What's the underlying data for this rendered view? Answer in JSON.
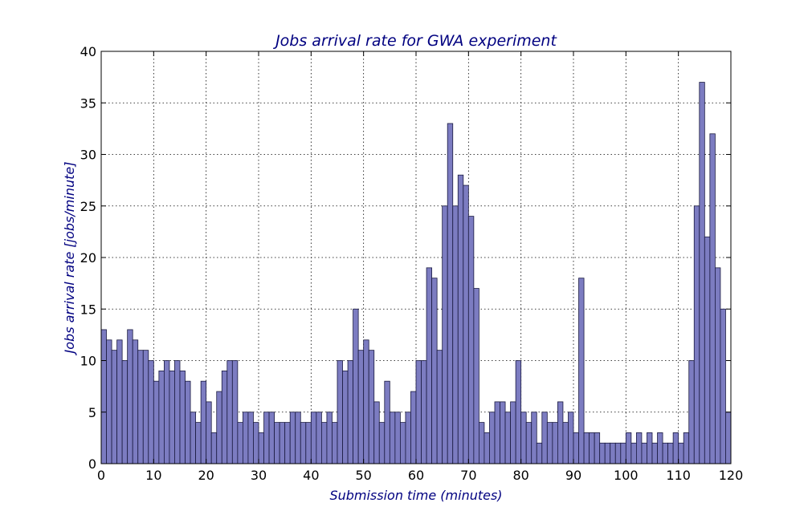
{
  "chart_data": {
    "type": "bar",
    "title": "Jobs arrival rate for GWA experiment",
    "xlabel": "Submission time (minutes)",
    "ylabel": "Jobs arrival rate [jobs/minute]",
    "xlim": [
      0,
      120
    ],
    "ylim": [
      0,
      40
    ],
    "xticks": [
      0,
      10,
      20,
      30,
      40,
      50,
      60,
      70,
      80,
      90,
      100,
      110,
      120
    ],
    "yticks": [
      0,
      5,
      10,
      15,
      20,
      25,
      30,
      35,
      40
    ],
    "grid": true,
    "bin_width": 1,
    "x": [
      0,
      1,
      2,
      3,
      4,
      5,
      6,
      7,
      8,
      9,
      10,
      11,
      12,
      13,
      14,
      15,
      16,
      17,
      18,
      19,
      20,
      21,
      22,
      23,
      24,
      25,
      26,
      27,
      28,
      29,
      30,
      31,
      32,
      33,
      34,
      35,
      36,
      37,
      38,
      39,
      40,
      41,
      42,
      43,
      44,
      45,
      46,
      47,
      48,
      49,
      50,
      51,
      52,
      53,
      54,
      55,
      56,
      57,
      58,
      59,
      60,
      61,
      62,
      63,
      64,
      65,
      66,
      67,
      68,
      69,
      70,
      71,
      72,
      73,
      74,
      75,
      76,
      77,
      78,
      79,
      80,
      81,
      82,
      83,
      84,
      85,
      86,
      87,
      88,
      89,
      90,
      91,
      92,
      93,
      94,
      95,
      96,
      97,
      98,
      99,
      100,
      101,
      102,
      103,
      104,
      105,
      106,
      107,
      108,
      109,
      110,
      111,
      112,
      113,
      114,
      115,
      116,
      117,
      118,
      119
    ],
    "values": [
      13,
      12,
      11,
      12,
      10,
      13,
      12,
      11,
      11,
      10,
      8,
      9,
      10,
      9,
      10,
      9,
      8,
      5,
      4,
      8,
      6,
      3,
      7,
      9,
      10,
      10,
      4,
      5,
      5,
      4,
      3,
      5,
      5,
      4,
      4,
      4,
      5,
      5,
      4,
      4,
      5,
      5,
      4,
      5,
      4,
      10,
      9,
      10,
      15,
      11,
      12,
      11,
      6,
      4,
      8,
      5,
      5,
      4,
      5,
      7,
      10,
      10,
      19,
      18,
      11,
      25,
      33,
      25,
      28,
      27,
      24,
      17,
      4,
      3,
      5,
      6,
      6,
      5,
      6,
      10,
      5,
      4,
      5,
      2,
      5,
      4,
      4,
      6,
      4,
      5,
      3,
      18,
      3,
      3,
      3,
      2,
      2,
      2,
      2,
      2,
      3,
      2,
      3,
      2,
      3,
      2,
      3,
      2,
      2,
      3,
      2,
      3,
      10,
      25,
      37,
      22,
      32,
      19,
      15,
      5
    ]
  }
}
